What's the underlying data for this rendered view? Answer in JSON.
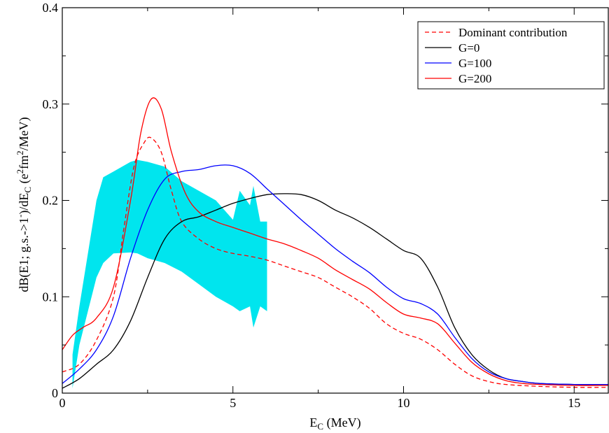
{
  "chart_data": {
    "type": "line",
    "xlabel": "E",
    "xlabel_sub": "C",
    "xlabel_unit": " (MeV)",
    "ylabel": "dB(E1; g.s.->1",
    "ylabel_sup1": "-",
    "ylabel_mid": ")/dE",
    "ylabel_sub": "C",
    "ylabel_unit1": " (e",
    "ylabel_sup2": "2",
    "ylabel_unit2": "fm",
    "ylabel_sup3": "2",
    "ylabel_unit3": "/MeV)",
    "xlim": [
      0,
      16
    ],
    "ylim": [
      0,
      0.4
    ],
    "xticks": [
      0,
      5,
      10,
      15
    ],
    "xtick_labels": [
      "0",
      "5",
      "10",
      "15"
    ],
    "yticks": [
      0,
      0.1,
      0.2,
      0.3,
      0.4
    ],
    "ytick_labels": [
      "0",
      "0.1",
      "0.2",
      "0.3",
      "0.4"
    ],
    "grid": false,
    "legend_position": "top-right",
    "band": {
      "color": "#00e5ee",
      "x": [
        0.3,
        0.5,
        1.0,
        1.2,
        1.5,
        2.0,
        2.2,
        2.5,
        3.0,
        3.5,
        4.0,
        4.5,
        5.0,
        5.2,
        5.5,
        5.6,
        5.8,
        6.0
      ],
      "upper": [
        0.04,
        0.09,
        0.2,
        0.224,
        0.23,
        0.24,
        0.242,
        0.24,
        0.235,
        0.22,
        0.21,
        0.2,
        0.18,
        0.21,
        0.195,
        0.215,
        0.178,
        0.178
      ],
      "lower": [
        0.005,
        0.05,
        0.12,
        0.135,
        0.145,
        0.146,
        0.145,
        0.14,
        0.135,
        0.126,
        0.113,
        0.1,
        0.09,
        0.085,
        0.09,
        0.068,
        0.09,
        0.085
      ]
    },
    "series": [
      {
        "name": "Dominant contribution",
        "color": "#ff0000",
        "dash": "dashed",
        "x": [
          0,
          0.5,
          1,
          1.5,
          1.8,
          2.1,
          2.4,
          2.6,
          2.9,
          3.2,
          3.5,
          4,
          4.5,
          5,
          5.5,
          6,
          6.5,
          7,
          7.5,
          8,
          8.5,
          9,
          9.5,
          10,
          10.5,
          11,
          11.5,
          12,
          12.5,
          13,
          14,
          15,
          16
        ],
        "y": [
          0.022,
          0.03,
          0.055,
          0.1,
          0.17,
          0.235,
          0.26,
          0.265,
          0.25,
          0.21,
          0.178,
          0.16,
          0.15,
          0.145,
          0.142,
          0.138,
          0.132,
          0.126,
          0.12,
          0.11,
          0.1,
          0.088,
          0.072,
          0.062,
          0.056,
          0.045,
          0.03,
          0.018,
          0.012,
          0.009,
          0.007,
          0.006,
          0.006
        ]
      },
      {
        "name": "G=0",
        "color": "#000000",
        "dash": "solid",
        "x": [
          0,
          0.5,
          1,
          1.5,
          2,
          2.5,
          3,
          3.5,
          4,
          4.5,
          5,
          5.5,
          6,
          6.5,
          7,
          7.5,
          8,
          8.5,
          9,
          9.5,
          10,
          10.5,
          11,
          11.5,
          12,
          12.5,
          13,
          13.5,
          14,
          15,
          16
        ],
        "y": [
          0.005,
          0.015,
          0.03,
          0.045,
          0.075,
          0.12,
          0.16,
          0.178,
          0.183,
          0.19,
          0.197,
          0.202,
          0.206,
          0.207,
          0.206,
          0.2,
          0.19,
          0.182,
          0.172,
          0.16,
          0.148,
          0.14,
          0.11,
          0.068,
          0.04,
          0.024,
          0.015,
          0.012,
          0.01,
          0.009,
          0.009
        ]
      },
      {
        "name": "G=100",
        "color": "#0000ff",
        "dash": "solid",
        "x": [
          0,
          0.5,
          1,
          1.5,
          2,
          2.5,
          3,
          3.5,
          4,
          4.5,
          5,
          5.5,
          6,
          6.5,
          7,
          7.5,
          8,
          8.5,
          9,
          9.5,
          10,
          10.5,
          11,
          11.5,
          12,
          12.5,
          13,
          13.5,
          14,
          15,
          16
        ],
        "y": [
          0.01,
          0.025,
          0.045,
          0.08,
          0.14,
          0.19,
          0.222,
          0.23,
          0.232,
          0.236,
          0.236,
          0.228,
          0.212,
          0.196,
          0.18,
          0.165,
          0.15,
          0.137,
          0.125,
          0.11,
          0.098,
          0.093,
          0.082,
          0.058,
          0.036,
          0.022,
          0.015,
          0.012,
          0.01,
          0.009,
          0.009
        ]
      },
      {
        "name": "G=200",
        "color": "#ff0000",
        "dash": "solid",
        "x": [
          0,
          0.3,
          0.6,
          1,
          1.5,
          2,
          2.3,
          2.6,
          2.9,
          3.2,
          3.6,
          4,
          4.5,
          5,
          5.5,
          6,
          6.5,
          7,
          7.5,
          8,
          8.5,
          9,
          9.5,
          10,
          10.5,
          11,
          11.5,
          12,
          12.5,
          13,
          13.5,
          14,
          15,
          16
        ],
        "y": [
          0.045,
          0.06,
          0.068,
          0.078,
          0.11,
          0.2,
          0.27,
          0.305,
          0.295,
          0.25,
          0.208,
          0.188,
          0.178,
          0.172,
          0.166,
          0.16,
          0.155,
          0.148,
          0.14,
          0.128,
          0.118,
          0.108,
          0.094,
          0.082,
          0.078,
          0.072,
          0.052,
          0.032,
          0.02,
          0.013,
          0.01,
          0.009,
          0.008,
          0.008
        ]
      }
    ]
  }
}
